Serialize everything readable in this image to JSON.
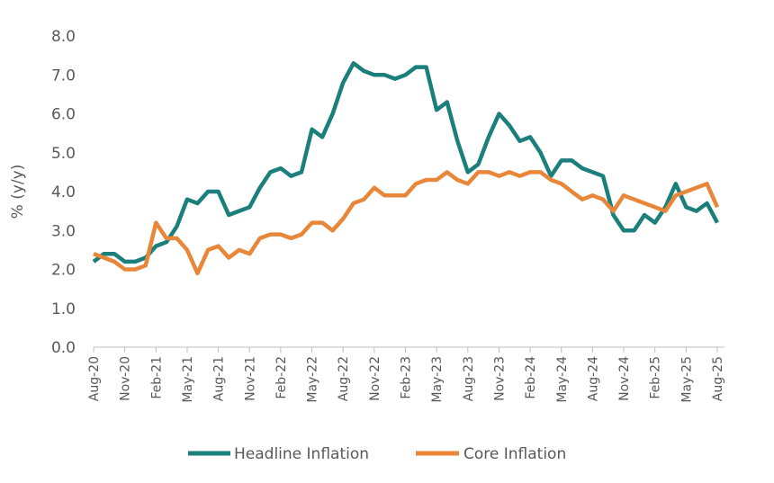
{
  "chart_data": {
    "type": "line",
    "title": "",
    "xlabel": "",
    "ylabel": "% (y/y)",
    "ylim": [
      0,
      8
    ],
    "yticks": [
      "0.0",
      "1.0",
      "2.0",
      "3.0",
      "4.0",
      "5.0",
      "6.0",
      "7.0",
      "8.0"
    ],
    "grid": false,
    "legend": "bottom",
    "x_tick_labels": [
      "Aug-20",
      "Nov-20",
      "Feb-21",
      "May-21",
      "Aug-21",
      "Nov-21",
      "Feb-22",
      "May-22",
      "Aug-22",
      "Nov-22",
      "Feb-23",
      "May-23",
      "Aug-23",
      "Nov-23",
      "Feb-24",
      "May-24",
      "Aug-24",
      "Nov-24",
      "Feb-25",
      "May-25",
      "Aug-25"
    ],
    "x_start": "Aug-20",
    "x_frequency": "monthly",
    "series": [
      {
        "name": "Headline Inflation",
        "color": "#1b7f7b",
        "values": [
          2.2,
          2.4,
          2.4,
          2.2,
          2.2,
          2.3,
          2.6,
          2.7,
          3.1,
          3.8,
          3.7,
          4.0,
          4.0,
          3.4,
          3.5,
          3.6,
          4.1,
          4.5,
          4.6,
          4.4,
          4.5,
          5.6,
          5.4,
          6.0,
          6.8,
          7.3,
          7.1,
          7.0,
          7.0,
          6.9,
          7.0,
          7.2,
          7.2,
          6.1,
          6.3,
          5.3,
          4.5,
          4.7,
          5.4,
          6.0,
          5.7,
          5.3,
          5.4,
          5.0,
          4.4,
          4.8,
          4.8,
          4.6,
          4.5,
          4.4,
          3.4,
          3.0,
          3.0,
          3.4,
          3.2,
          3.6,
          4.2,
          3.6,
          3.5,
          3.7,
          3.2
        ]
      },
      {
        "name": "Core Inflation",
        "color": "#e8873a",
        "values": [
          2.4,
          2.3,
          2.2,
          2.0,
          2.0,
          2.1,
          3.2,
          2.8,
          2.8,
          2.5,
          1.9,
          2.5,
          2.6,
          2.3,
          2.5,
          2.4,
          2.8,
          2.9,
          2.9,
          2.8,
          2.9,
          3.2,
          3.2,
          3.0,
          3.3,
          3.7,
          3.8,
          4.1,
          3.9,
          3.9,
          3.9,
          4.2,
          4.3,
          4.3,
          4.5,
          4.3,
          4.2,
          4.5,
          4.5,
          4.4,
          4.5,
          4.4,
          4.5,
          4.5,
          4.3,
          4.2,
          4.0,
          3.8,
          3.9,
          3.8,
          3.5,
          3.9,
          3.8,
          3.7,
          3.6,
          3.5,
          3.9,
          4.0,
          4.1,
          4.2,
          3.6
        ]
      }
    ]
  }
}
